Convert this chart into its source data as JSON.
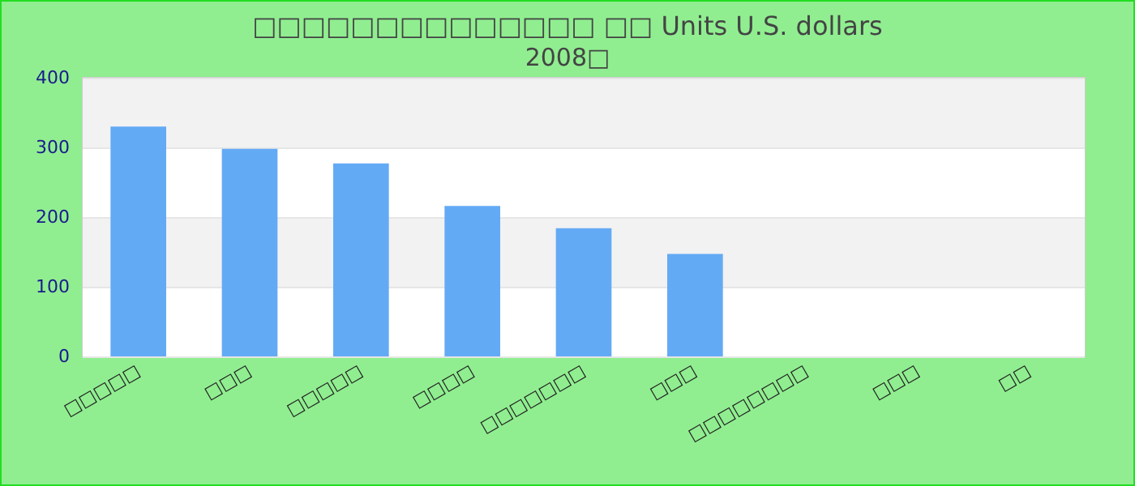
{
  "chart_data": {
    "type": "bar",
    "title": "□□□□□□□□□□□□□□ □□ Units U.S. dollars",
    "subtitle": "2008□",
    "categories": [
      "□□□□□",
      "□□□",
      "□□□□□",
      "□□□□",
      "□□□□□□□",
      "□□□",
      "□□□□□□□□",
      "□□□",
      "□□"
    ],
    "values": [
      330,
      298,
      277,
      216,
      184,
      147,
      null,
      null,
      null
    ],
    "color": "#63aaf5",
    "ylim": [
      0,
      400
    ],
    "yticks": [
      0,
      100,
      200,
      300,
      400
    ],
    "grid": "y"
  }
}
